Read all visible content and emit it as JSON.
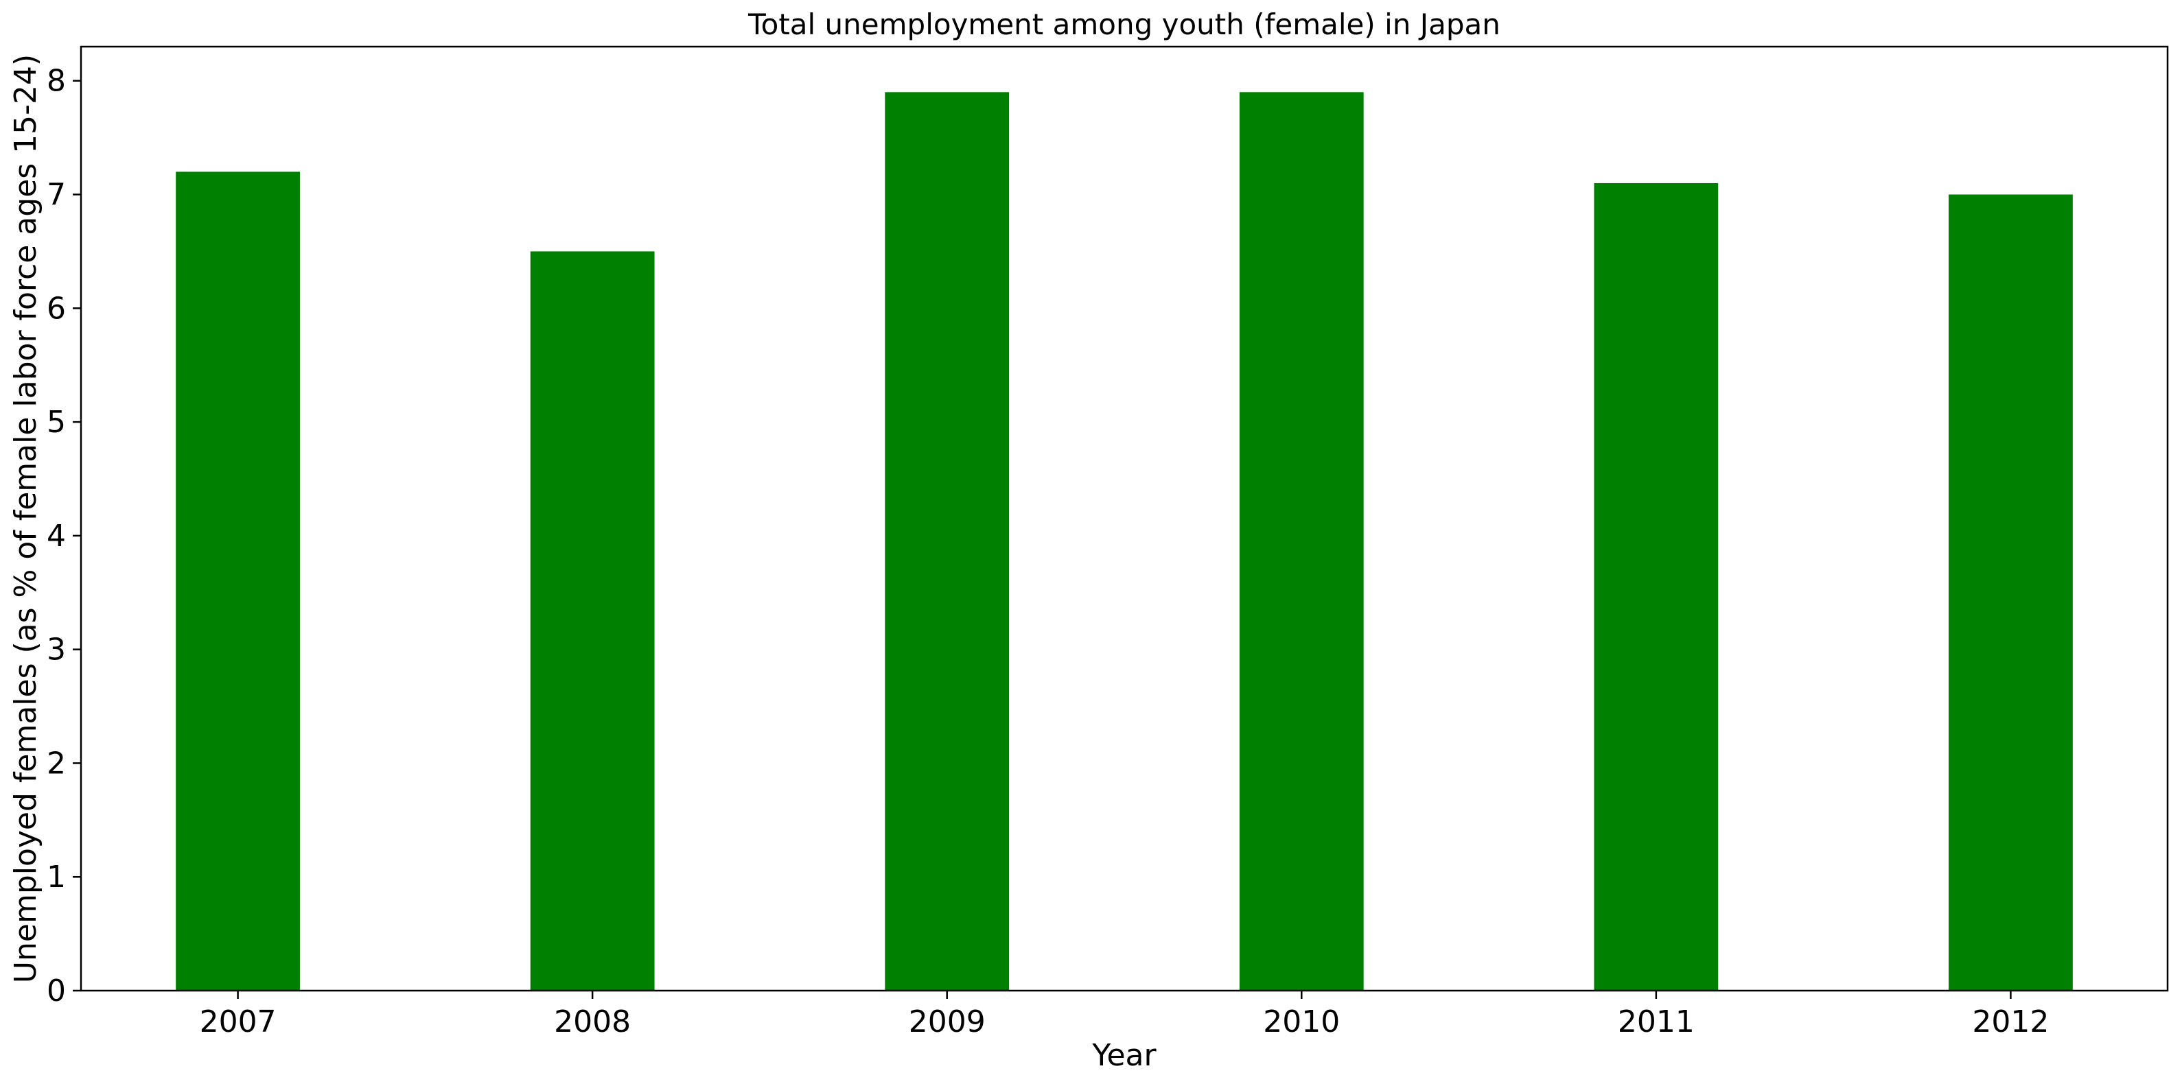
{
  "chart_data": {
    "type": "bar",
    "title": "Total unemployment among youth (female) in Japan",
    "xlabel": "Year",
    "ylabel": "Unemployed females (as % of female labor force ages 15-24)",
    "categories": [
      "2007",
      "2008",
      "2009",
      "2010",
      "2011",
      "2012"
    ],
    "values": [
      7.2,
      6.5,
      7.9,
      7.9,
      7.1,
      7.0
    ],
    "ylim": [
      0,
      8.3
    ],
    "yticks": [
      "0",
      "1",
      "2",
      "3",
      "4",
      "5",
      "6",
      "7",
      "8"
    ],
    "bar_color": "#008000",
    "grid": false,
    "legend": "none"
  }
}
